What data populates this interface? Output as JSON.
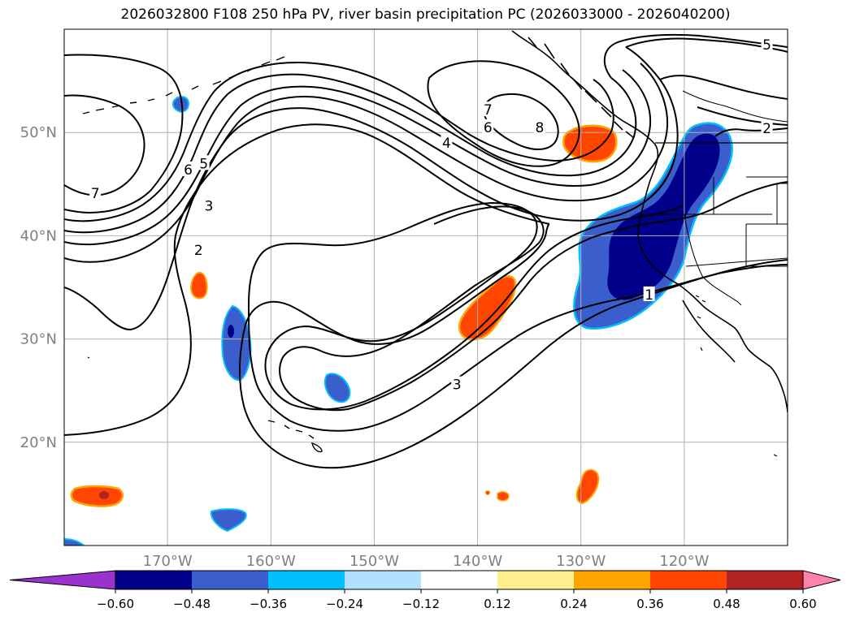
{
  "title": "2026032800 F108 250 hPa PV, river basin precipitation PC (2026033000 - 2026040200)",
  "map": {
    "lon_range": [
      -180,
      -110
    ],
    "lat_range": [
      10,
      60
    ],
    "lon_ticks": [
      {
        "lon": -170,
        "label": "170°W"
      },
      {
        "lon": -160,
        "label": "160°W"
      },
      {
        "lon": -150,
        "label": "150°W"
      },
      {
        "lon": -140,
        "label": "140°W"
      },
      {
        "lon": -130,
        "label": "130°W"
      },
      {
        "lon": -120,
        "label": "120°W"
      }
    ],
    "lat_ticks": [
      {
        "lat": 50,
        "label": "50°N"
      },
      {
        "lat": 40,
        "label": "40°N"
      },
      {
        "lat": 30,
        "label": "30°N"
      },
      {
        "lat": 20,
        "label": "20°N"
      }
    ],
    "gridlines": true,
    "contour_field": "250 hPa PV",
    "contour_labels": [
      {
        "text": "7",
        "lon": -177,
        "lat": 44.1
      },
      {
        "text": "6",
        "lon": -168,
        "lat": 46.4
      },
      {
        "text": "5",
        "lon": -166.5,
        "lat": 47
      },
      {
        "text": "3",
        "lon": -166,
        "lat": 42.9
      },
      {
        "text": "2",
        "lon": -167,
        "lat": 38.6
      },
      {
        "text": "7",
        "lon": -139,
        "lat": 52.2
      },
      {
        "text": "6",
        "lon": -139,
        "lat": 50.5
      },
      {
        "text": "4",
        "lon": -143,
        "lat": 49
      },
      {
        "text": "8",
        "lon": -134,
        "lat": 50.5
      },
      {
        "text": "3",
        "lon": -142,
        "lat": 25.6
      },
      {
        "text": "1",
        "lon": -123.4,
        "lat": 34.3
      },
      {
        "text": "2",
        "lon": -112,
        "lat": 50.4
      },
      {
        "text": "5",
        "lon": -112,
        "lat": 58.5
      }
    ],
    "precip_pc_regions": [
      {
        "name": "US west coast river basins",
        "value": -0.6
      },
      {
        "name": "Gulf of Alaska coast",
        "value": 0.42
      },
      {
        "name": "subtropical band near 35N 139W",
        "value": 0.42
      },
      {
        "name": "near 28N 163W",
        "value": -0.45
      },
      {
        "name": "near 25N 154W",
        "value": -0.4
      },
      {
        "name": "near 35N 167W",
        "value": 0.4
      },
      {
        "name": "near 15N 177W",
        "value": 0.45
      },
      {
        "name": "near 15N 129W",
        "value": 0.4
      },
      {
        "name": "near 13N 163W",
        "value": -0.35
      }
    ]
  },
  "colorbar": {
    "boundaries": [
      -0.72,
      -0.6,
      -0.48,
      -0.36,
      -0.24,
      -0.12,
      0.12,
      0.24,
      0.36,
      0.48,
      0.6,
      0.72
    ],
    "colors": [
      "#9a32cd",
      "#00008b",
      "#3a5fcd",
      "#00bfff",
      "#b0e2ff",
      "#ffffff",
      "#fff08f",
      "#ffa500",
      "#ff4500",
      "#b22222",
      "#ff82ab"
    ],
    "extend": "both",
    "tick_labels": [
      "−0.60",
      "−0.48",
      "−0.36",
      "−0.24",
      "−0.12",
      "0.12",
      "0.24",
      "0.36",
      "0.48",
      "0.60"
    ]
  },
  "colors": {
    "neg_dark": "#00008b",
    "neg_mid": "#3a5fcd",
    "neg_light": "#00bfff",
    "pos_light": "#ffa500",
    "pos_mid": "#ff4500",
    "pos_dark": "#b22222",
    "grid": "#b0b0b0",
    "tick_label": "#808080"
  }
}
